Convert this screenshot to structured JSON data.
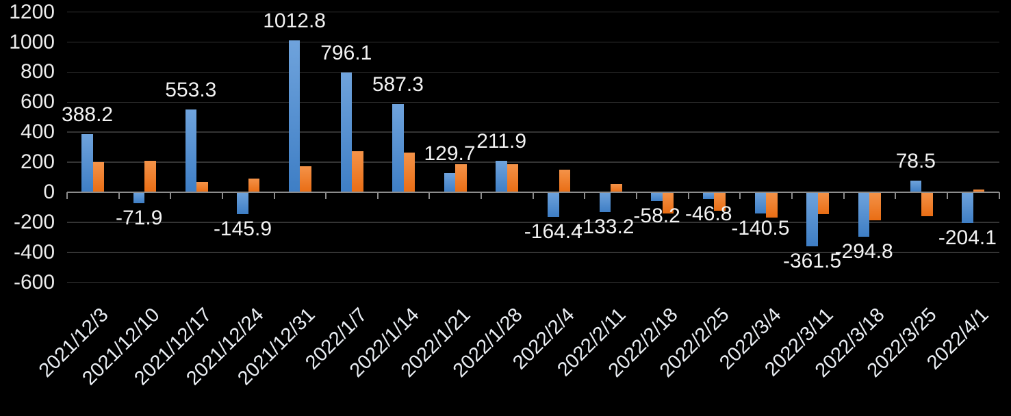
{
  "chart_data": {
    "type": "bar",
    "title": "",
    "categories": [
      "2021/12/3",
      "2021/12/10",
      "2021/12/17",
      "2021/12/24",
      "2021/12/31",
      "2022/1/7",
      "2022/1/14",
      "2022/1/21",
      "2022/1/28",
      "2022/2/4",
      "2022/2/11",
      "2022/2/18",
      "2022/2/25",
      "2022/3/4",
      "2022/3/11",
      "2022/3/18",
      "2022/3/25",
      "2022/4/1"
    ],
    "series": [
      {
        "name": "blue-series",
        "values": [
          388.2,
          -71.9,
          553.3,
          -145.9,
          1012.8,
          796.1,
          587.3,
          129.7,
          211.9,
          -164.4,
          -133.2,
          -58.2,
          -46.8,
          -140.5,
          -361.5,
          -294.8,
          78.5,
          -204.1
        ],
        "labels": [
          "388.2",
          "-71.9",
          "553.3",
          "-145.9",
          "1012.8",
          "796.1",
          "587.3",
          "129.7",
          "211.9",
          "-164.4",
          "-133.2",
          "-58.2",
          "-46.8",
          "-140.5",
          "-361.5",
          "-294.8",
          "78.5",
          "-204.1"
        ],
        "color_top": "#6FA3DC",
        "color_bottom": "#3E7EC5"
      },
      {
        "name": "orange-series",
        "values": [
          202,
          210,
          68,
          90,
          172,
          272,
          265,
          185,
          187,
          150,
          55,
          -140,
          -125,
          -170,
          -148,
          -185,
          -160,
          18
        ],
        "labels": null,
        "color_top": "#F49349",
        "color_bottom": "#E96D14"
      }
    ],
    "y_axis": {
      "min": -600,
      "max": 1200,
      "tick_step": 200,
      "ticks": [
        1200,
        1000,
        800,
        600,
        400,
        200,
        0,
        -200,
        -400,
        -600
      ],
      "tick_labels": [
        "1200",
        "1000",
        "800",
        "600",
        "400",
        "200",
        "0",
        "-200",
        "-400",
        "-600"
      ]
    },
    "x_axis": {
      "label_rotation_deg": -45
    },
    "grid": true,
    "legend": false,
    "colors": {
      "background": "#000000",
      "gridline": "#343434",
      "axis_line": "#8C8C8C",
      "text": "#ECECEC",
      "data_label": "#F2F2F2"
    }
  }
}
